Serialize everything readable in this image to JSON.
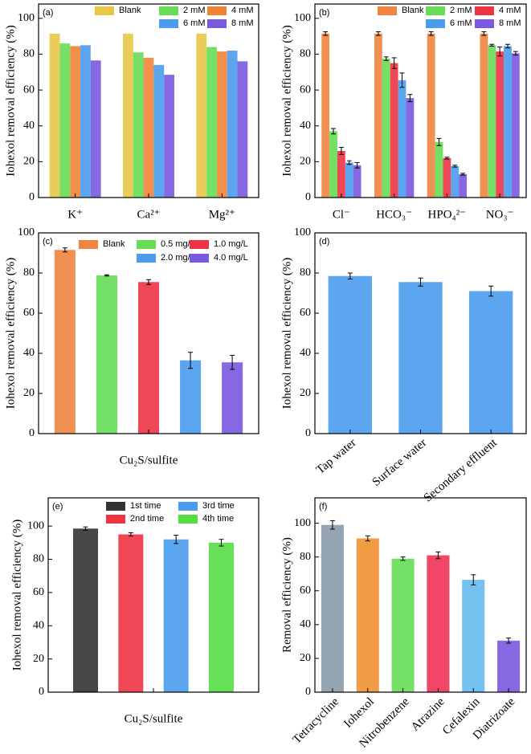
{
  "chart_data": [
    {
      "type": "bar",
      "panel": "(a)",
      "ylabel": "Iohexol removal efficiency (%)",
      "categories": [
        "K⁺",
        "Ca²⁺",
        "Mg²⁺"
      ],
      "series": [
        {
          "name": "Blank",
          "color": "#e8c646",
          "values": [
            91.5,
            91.5,
            91.5
          ]
        },
        {
          "name": "2 mM",
          "color": "#66dd55",
          "values": [
            86,
            81,
            84
          ]
        },
        {
          "name": "4 mM",
          "color": "#f08436",
          "values": [
            84.5,
            78,
            81.5
          ]
        },
        {
          "name": "6 mM",
          "color": "#4a9cee",
          "values": [
            85,
            74,
            82
          ]
        },
        {
          "name": "8 mM",
          "color": "#7a58e0",
          "values": [
            76.5,
            68.5,
            76
          ]
        }
      ],
      "ylim": [
        0,
        108
      ],
      "yticks": [
        0,
        20,
        40,
        60,
        80,
        100
      ]
    },
    {
      "type": "bar",
      "panel": "(b)",
      "ylabel": "Iohexol removal efficiency (%)",
      "categories": [
        "Cl⁻",
        "HCO₃⁻",
        "HPO₄²⁻",
        "NO₃⁻"
      ],
      "series": [
        {
          "name": "Blank",
          "color": "#f08440",
          "values": [
            91.5,
            91.5,
            91.5,
            91.5
          ],
          "errors": [
            1,
            1,
            1,
            1
          ]
        },
        {
          "name": "2 mM",
          "color": "#66dd55",
          "values": [
            37,
            77.5,
            31,
            85
          ],
          "errors": [
            1.5,
            1,
            2,
            0.5
          ]
        },
        {
          "name": "4 mM",
          "color": "#ee3344",
          "values": [
            26,
            75,
            22,
            81.5
          ],
          "errors": [
            2,
            3,
            0.5,
            2.5
          ]
        },
        {
          "name": "6 mM",
          "color": "#4a9cee",
          "values": [
            19.5,
            65.5,
            17.5,
            84.5
          ],
          "errors": [
            1,
            4,
            0.5,
            1
          ]
        },
        {
          "name": "8 mM",
          "color": "#7a58e0",
          "values": [
            18,
            55.5,
            13,
            80.5
          ],
          "errors": [
            1.5,
            2,
            0.5,
            1
          ]
        }
      ],
      "ylim": [
        0,
        108
      ],
      "yticks": [
        0,
        20,
        40,
        60,
        80,
        100
      ]
    },
    {
      "type": "bar",
      "panel": "(c)",
      "ylabel": "Iohexol removal efficiency (%)",
      "xlabel": "Cu₂S/sulfite",
      "categories": [
        null
      ],
      "series": [
        {
          "name": "Blank",
          "color": "#f08440",
          "values": [
            91.5
          ],
          "errors": [
            1
          ]
        },
        {
          "name": "0.5 mg/L",
          "color": "#66dd55",
          "values": [
            78.8
          ],
          "errors": [
            0.3
          ]
        },
        {
          "name": "1.0 mg/L",
          "color": "#ee3344",
          "values": [
            75.5
          ],
          "errors": [
            1.2
          ]
        },
        {
          "name": "2.0 mg/L",
          "color": "#4a9cee",
          "values": [
            36.5
          ],
          "errors": [
            4
          ]
        },
        {
          "name": "4.0 mg/L",
          "color": "#7a58e0",
          "values": [
            35.5
          ],
          "errors": [
            3.5
          ]
        }
      ],
      "ylim": [
        0,
        100
      ],
      "yticks": [
        0,
        20,
        40,
        60,
        80,
        100
      ]
    },
    {
      "type": "bar",
      "panel": "(d)",
      "ylabel": "Iohexol removal efficiency (%)",
      "categories": [
        "Tap water",
        "Surface water",
        "Secondary effluent"
      ],
      "series": [
        {
          "color": "#4a9cee",
          "values": [
            78.5,
            75.5,
            71
          ],
          "errors": [
            1.5,
            2,
            2.5
          ]
        }
      ],
      "ylim": [
        0,
        100
      ],
      "yticks": [
        0,
        20,
        40,
        60,
        80,
        100
      ]
    },
    {
      "type": "bar",
      "panel": "(e)",
      "ylabel": "Iohexol removal efficiency (%)",
      "xlabel": "Cu₂S/sulfite",
      "categories": [
        null
      ],
      "series": [
        {
          "name": "1st time",
          "color": "#333333",
          "values": [
            98.5
          ],
          "errors": [
            1
          ]
        },
        {
          "name": "2nd time",
          "color": "#ee3344",
          "values": [
            95
          ],
          "errors": [
            1
          ]
        },
        {
          "name": "3rd time",
          "color": "#4a9cee",
          "values": [
            92
          ],
          "errors": [
            2.5
          ]
        },
        {
          "name": "4th time",
          "color": "#55dd44",
          "values": [
            90
          ],
          "errors": [
            2
          ]
        }
      ],
      "ylim": [
        0,
        117
      ],
      "yticks": [
        0,
        20,
        40,
        60,
        80,
        100
      ]
    },
    {
      "type": "bar",
      "panel": "(f)",
      "ylabel": "Removal efficiency (%)",
      "categories": [
        "Tetracycline",
        "Iohexol",
        "Nitrobenzene",
        "Atrazine",
        "Cefalexin",
        "Diatrizoate"
      ],
      "series": [
        {
          "colors": [
            "#8a9aa8",
            "#f09030",
            "#66dd55",
            "#ee3355",
            "#66bbee",
            "#7a58e0"
          ],
          "values": [
            99,
            91,
            79,
            81,
            66.5,
            30.5
          ],
          "errors": [
            2.5,
            1.5,
            1,
            2,
            3,
            1.5
          ]
        }
      ],
      "ylim": [
        0,
        115
      ],
      "yticks": [
        0,
        20,
        40,
        60,
        80,
        100
      ]
    }
  ]
}
